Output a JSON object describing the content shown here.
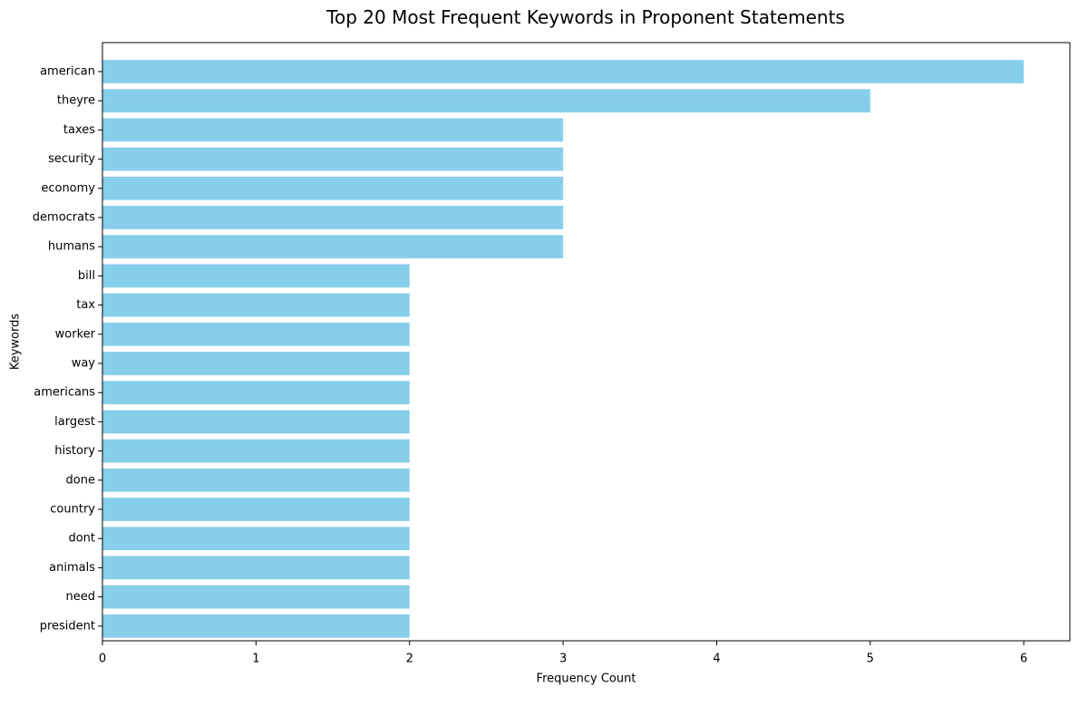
{
  "chart_data": {
    "type": "bar",
    "orientation": "horizontal",
    "title": "Top 20 Most Frequent Keywords in Proponent Statements",
    "xlabel": "Frequency Count",
    "ylabel": "Keywords",
    "categories": [
      "american",
      "theyre",
      "taxes",
      "security",
      "economy",
      "democrats",
      "humans",
      "bill",
      "tax",
      "worker",
      "way",
      "americans",
      "largest",
      "history",
      "done",
      "country",
      "dont",
      "animals",
      "need",
      "president"
    ],
    "values": [
      6,
      5,
      3,
      3,
      3,
      3,
      3,
      2,
      2,
      2,
      2,
      2,
      2,
      2,
      2,
      2,
      2,
      2,
      2,
      2
    ],
    "xlim": [
      0,
      6.3
    ],
    "xticks": [
      0,
      1,
      2,
      3,
      4,
      5,
      6
    ],
    "grid": false,
    "legend": "none",
    "bar_color": "#87CEEB"
  }
}
